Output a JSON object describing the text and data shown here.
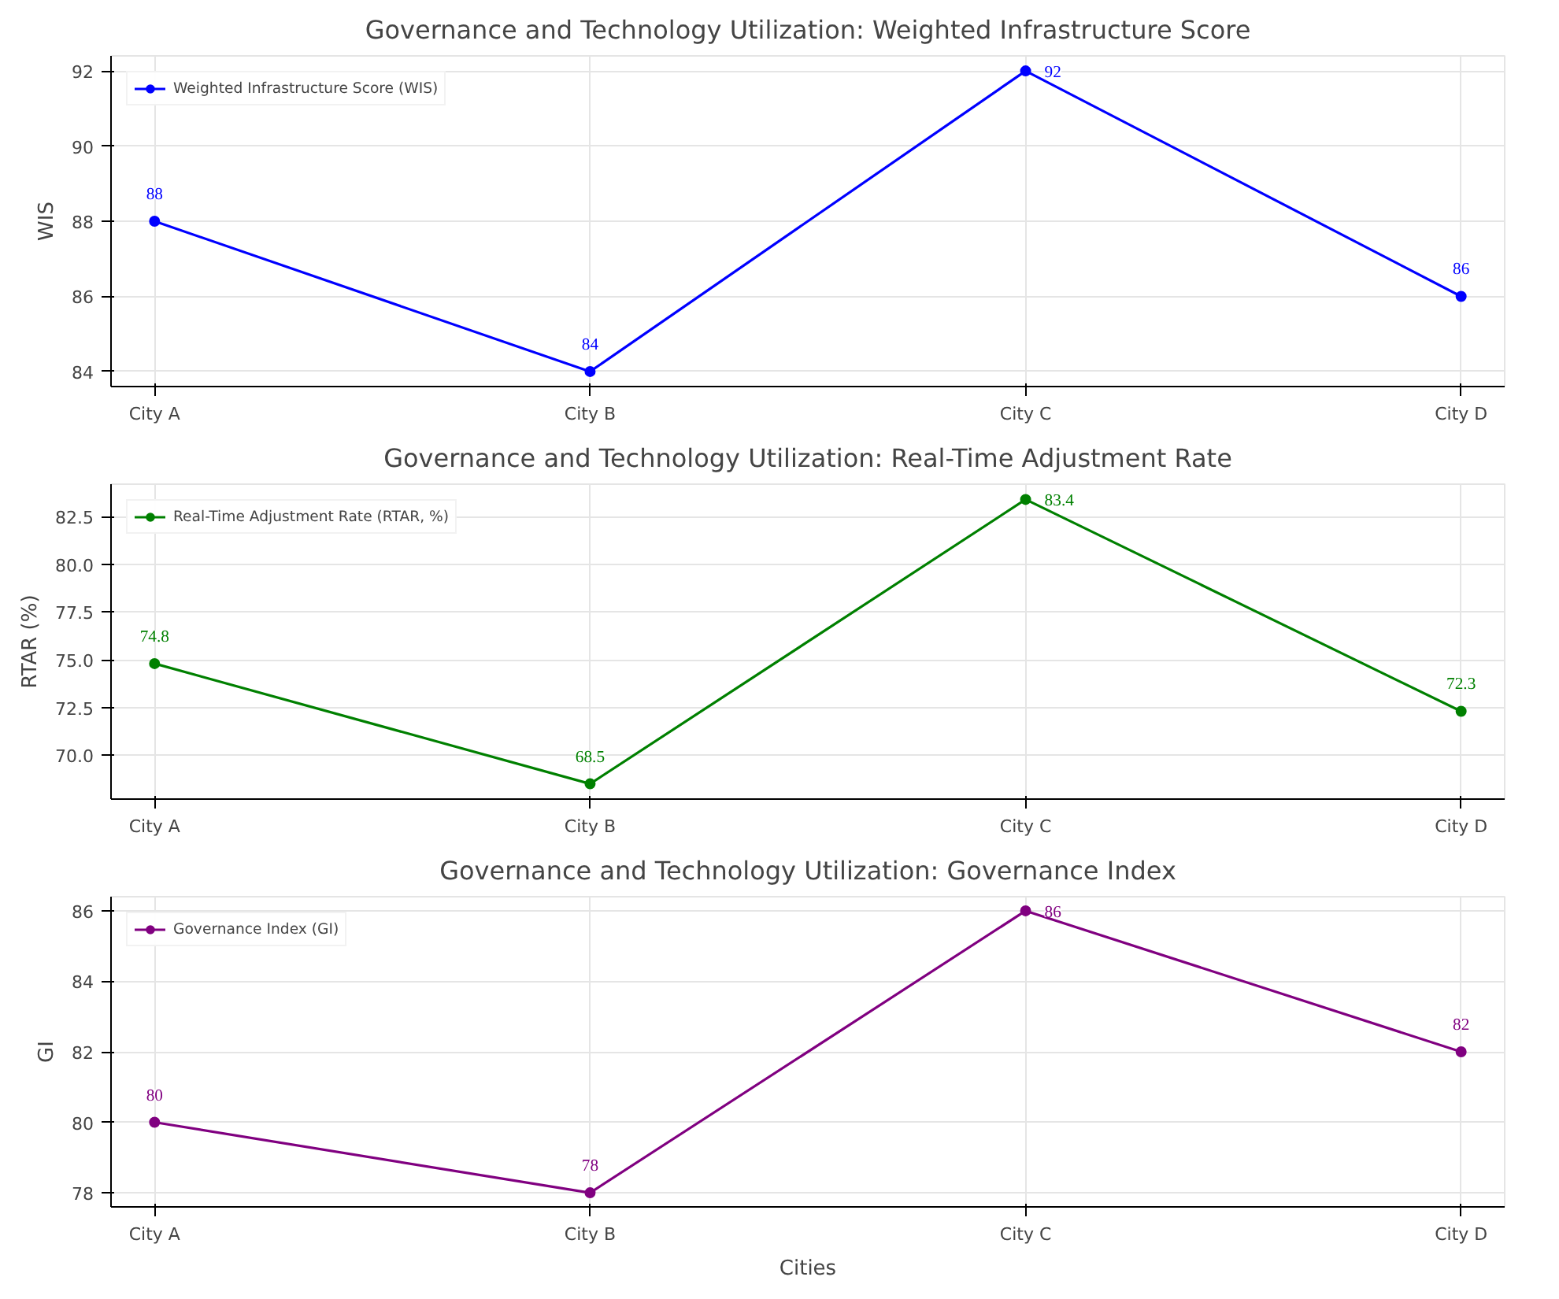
{
  "chart_data": [
    {
      "type": "line",
      "title": "Governance and Technology Utilization: Weighted Infrastructure Score",
      "ylabel": "WIS",
      "categories": [
        "City A",
        "City B",
        "City C",
        "City D"
      ],
      "series": [
        {
          "name": "Weighted Infrastructure Score (WIS)",
          "color": "#0000ff",
          "values": [
            88,
            84,
            92,
            86
          ]
        }
      ],
      "ylim": [
        83.6,
        92.4
      ],
      "yticks": [
        84,
        86,
        88,
        90,
        92
      ],
      "grid": true,
      "legend": "top left",
      "marker": "circle",
      "line_style": "solid",
      "data_labels": true
    },
    {
      "type": "line",
      "title": "Governance and Technology Utilization: Real-Time Adjustment Rate",
      "ylabel": "RTAR (%)",
      "categories": [
        "City A",
        "City B",
        "City C",
        "City D"
      ],
      "series": [
        {
          "name": "Real-Time Adjustment Rate (RTAR, %)",
          "color": "#008000",
          "values": [
            74.8,
            68.5,
            83.4,
            72.3
          ]
        }
      ],
      "ylim": [
        67.7,
        84.2
      ],
      "yticks": [
        {
          "value": 70,
          "label": "70.0"
        },
        {
          "value": 72.5,
          "label": "72.5"
        },
        {
          "value": 75,
          "label": "75.0"
        },
        {
          "value": 77.5,
          "label": "77.5"
        },
        {
          "value": 80,
          "label": "80.0"
        },
        {
          "value": 82.5,
          "label": "82.5"
        }
      ],
      "grid": true,
      "legend": "top left",
      "marker": "circle",
      "line_style": "solid",
      "data_labels": true
    },
    {
      "type": "line",
      "title": "Governance and Technology Utilization: Governance Index",
      "xlabel": "Cities",
      "ylabel": "GI",
      "categories": [
        "City A",
        "City B",
        "City C",
        "City D"
      ],
      "series": [
        {
          "name": "Governance Index (GI)",
          "color": "#800080",
          "values": [
            80,
            78,
            86,
            82
          ]
        }
      ],
      "ylim": [
        77.6,
        86.4
      ],
      "yticks": [
        78,
        80,
        82,
        84,
        86
      ],
      "grid": true,
      "legend": "top left",
      "marker": "circle",
      "line_style": "solid",
      "data_labels": true
    }
  ]
}
